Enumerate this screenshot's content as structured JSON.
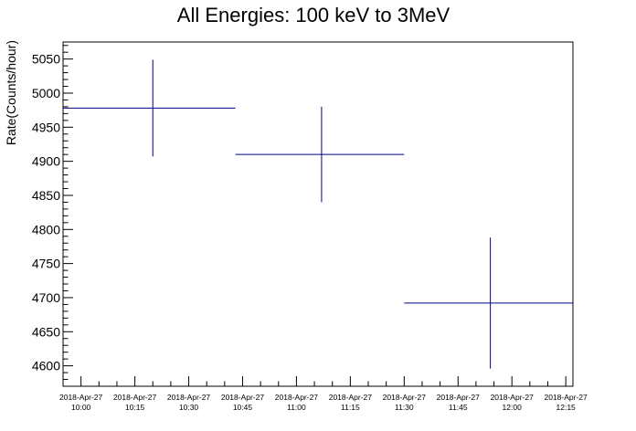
{
  "chart_data": {
    "type": "scatter",
    "title": "All Energies:  100 keV to 3MeV",
    "xlabel": "",
    "ylabel": "Rate(Counts/hour)",
    "xlim": [
      "2018-04-27T09:55",
      "2018-04-27T12:17"
    ],
    "ylim": [
      4570,
      5075
    ],
    "yticks": [
      4600,
      4650,
      4700,
      4750,
      4800,
      4850,
      4900,
      4950,
      5000,
      5050
    ],
    "x_tick_labels": [
      {
        "time": "2018-04-27T10:00",
        "date": "2018-Apr-27",
        "clock": "10:00"
      },
      {
        "time": "2018-04-27T10:15",
        "date": "2018-Apr-27",
        "clock": "10:15"
      },
      {
        "time": "2018-04-27T10:30",
        "date": "2018-Apr-27",
        "clock": "10:30"
      },
      {
        "time": "2018-04-27T10:45",
        "date": "2018-Apr-27",
        "clock": "10:45"
      },
      {
        "time": "2018-04-27T11:00",
        "date": "2018-Apr-27",
        "clock": "11:00"
      },
      {
        "time": "2018-04-27T11:15",
        "date": "2018-Apr-27",
        "clock": "11:15"
      },
      {
        "time": "2018-04-27T11:30",
        "date": "2018-Apr-27",
        "clock": "11:30"
      },
      {
        "time": "2018-04-27T11:45",
        "date": "2018-Apr-27",
        "clock": "11:45"
      },
      {
        "time": "2018-04-27T12:00",
        "date": "2018-Apr-27",
        "clock": "12:00"
      },
      {
        "time": "2018-04-27T12:15",
        "date": "2018-Apr-27",
        "clock": "12:15"
      }
    ],
    "series": [
      {
        "color": "#000080",
        "points": [
          {
            "x": "2018-04-27T10:20",
            "x_start": "2018-04-27T09:55",
            "x_end": "2018-04-27T10:43",
            "y": 4978,
            "y_err": 71
          },
          {
            "x": "2018-04-27T11:07",
            "x_start": "2018-04-27T10:43",
            "x_end": "2018-04-27T11:30",
            "y": 4910,
            "y_err": 70
          },
          {
            "x": "2018-04-27T11:54",
            "x_start": "2018-04-27T11:30",
            "x_end": "2018-04-27T12:17",
            "y": 4692,
            "y_err": 96
          }
        ]
      }
    ],
    "grid": false,
    "legend": "none"
  }
}
